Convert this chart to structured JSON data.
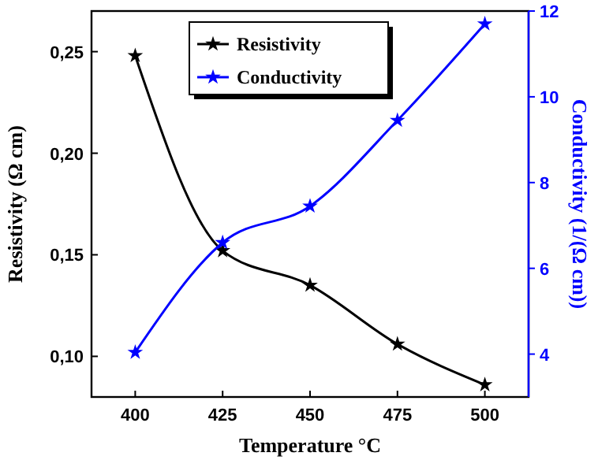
{
  "chart_data": {
    "type": "line",
    "xlabel": "Temperature °C",
    "ylabel": "Resistivity (Ω cm)",
    "y2label": "Conductivity (1/(Ω cm))",
    "x": [
      400,
      425,
      450,
      475,
      500
    ],
    "series": [
      {
        "name": "Resistivity",
        "color": "#000000",
        "values": [
          0.248,
          0.152,
          0.135,
          0.106,
          0.086
        ]
      },
      {
        "name": "Conductivity",
        "color": "#0000ff",
        "values": [
          4.04,
          6.6,
          7.45,
          9.45,
          11.7
        ],
        "axis": "y2"
      }
    ],
    "xlim": [
      387.5,
      512.5
    ],
    "xticks": [
      400,
      425,
      450,
      475,
      500
    ],
    "ylim": [
      0.08,
      0.27
    ],
    "yticks": [
      {
        "value": 0.1,
        "label": "0,10"
      },
      {
        "value": 0.15,
        "label": "0,15"
      },
      {
        "value": 0.2,
        "label": "0,20"
      },
      {
        "value": 0.25,
        "label": "0,25"
      }
    ],
    "y2lim": [
      3,
      12
    ],
    "y2ticks": [
      4,
      6,
      8,
      10,
      12
    ],
    "marker": "star",
    "line_style": "solid",
    "legend": "top",
    "grid": false
  }
}
